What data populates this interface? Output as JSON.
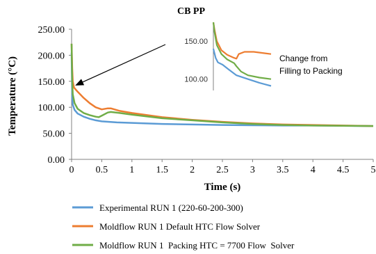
{
  "chart_data": [
    {
      "type": "line",
      "title": "CB PP",
      "xlabel": "Time (s)",
      "ylabel": "Temperature (°C)",
      "xlim": [
        0,
        5
      ],
      "ylim": [
        0,
        250
      ],
      "x_ticks": [
        "0",
        "0.5",
        "1",
        "1.5",
        "2",
        "2.5",
        "3",
        "3.5",
        "4",
        "4.5",
        "5"
      ],
      "y_ticks": [
        "0.00",
        "50.00",
        "100.00",
        "150.00",
        "200.00",
        "250.00"
      ],
      "grid": false,
      "legend_position": "bottom",
      "series": [
        {
          "name": "Experimental RUN 1 (220-60-200-300)",
          "color": "#5b9bd5",
          "points": [
            [
              0,
              205
            ],
            [
              0.01,
              120
            ],
            [
              0.02,
              105
            ],
            [
              0.05,
              95
            ],
            [
              0.1,
              88
            ],
            [
              0.2,
              82
            ],
            [
              0.3,
              78
            ],
            [
              0.4,
              75
            ],
            [
              0.5,
              73
            ],
            [
              0.75,
              71
            ],
            [
              1.0,
              70
            ],
            [
              1.5,
              68
            ],
            [
              2.0,
              67
            ],
            [
              2.5,
              66
            ],
            [
              3.0,
              65.5
            ],
            [
              3.5,
              65
            ],
            [
              4.0,
              65
            ],
            [
              4.5,
              64.5
            ],
            [
              5.0,
              64
            ]
          ]
        },
        {
          "name": "Moldflow RUN 1 Default HTC Flow Solver",
          "color": "#ed7d31",
          "points": [
            [
              0,
              222
            ],
            [
              0.01,
              175
            ],
            [
              0.02,
              150
            ],
            [
              0.04,
              138
            ],
            [
              0.1,
              130
            ],
            [
              0.2,
              118
            ],
            [
              0.3,
              108
            ],
            [
              0.4,
              100
            ],
            [
              0.5,
              96
            ],
            [
              0.6,
              98
            ],
            [
              0.65,
              98
            ],
            [
              0.8,
              93
            ],
            [
              1.0,
              89
            ],
            [
              1.25,
              85
            ],
            [
              1.5,
              81
            ],
            [
              2.0,
              76
            ],
            [
              2.5,
              72
            ],
            [
              3.0,
              69
            ],
            [
              3.5,
              67
            ],
            [
              4.0,
              66
            ],
            [
              4.5,
              65
            ],
            [
              5.0,
              64
            ]
          ]
        },
        {
          "name": "Moldflow RUN 1  Packing HTC = 7700 Flow  Solver",
          "color": "#70ad47",
          "points": [
            [
              0,
              222
            ],
            [
              0.01,
              150
            ],
            [
              0.02,
              125
            ],
            [
              0.05,
              108
            ],
            [
              0.1,
              97
            ],
            [
              0.2,
              89
            ],
            [
              0.3,
              85
            ],
            [
              0.4,
              82
            ],
            [
              0.45,
              81
            ],
            [
              0.5,
              84
            ],
            [
              0.6,
              90
            ],
            [
              0.65,
              91
            ],
            [
              0.8,
              89
            ],
            [
              1.0,
              86
            ],
            [
              1.5,
              79
            ],
            [
              2.0,
              75
            ],
            [
              2.5,
              71
            ],
            [
              3.0,
              68
            ],
            [
              3.5,
              66
            ],
            [
              4.0,
              65
            ],
            [
              4.5,
              64.5
            ],
            [
              5.0,
              64
            ]
          ]
        }
      ],
      "annotation": "Change from\nFilling to Packing"
    },
    {
      "type": "line",
      "role": "inset",
      "y_ticks": [
        "100.00",
        "150.00"
      ],
      "ylim": [
        85,
        175
      ],
      "xlim": [
        0,
        0.5
      ],
      "series": [
        {
          "name": "Experimental RUN 1 (220-60-200-300)",
          "color": "#5b9bd5",
          "points": [
            [
              0.0,
              140
            ],
            [
              0.02,
              128
            ],
            [
              0.04,
              122
            ],
            [
              0.08,
              119
            ],
            [
              0.13,
              113
            ],
            [
              0.2,
              105
            ],
            [
              0.3,
              100
            ],
            [
              0.4,
              95
            ],
            [
              0.5,
              91
            ]
          ]
        },
        {
          "name": "Moldflow RUN 1 Default HTC Flow Solver",
          "color": "#ed7d31",
          "points": [
            [
              0.0,
              178
            ],
            [
              0.01,
              165
            ],
            [
              0.03,
              150
            ],
            [
              0.07,
              138
            ],
            [
              0.12,
              132
            ],
            [
              0.18,
              128
            ],
            [
              0.2,
              127
            ],
            [
              0.22,
              133
            ],
            [
              0.27,
              136
            ],
            [
              0.35,
              136
            ],
            [
              0.45,
              134
            ],
            [
              0.5,
              133
            ]
          ]
        },
        {
          "name": "Moldflow RUN 1  Packing HTC = 7700 Flow  Solver",
          "color": "#70ad47",
          "points": [
            [
              0.0,
              178
            ],
            [
              0.01,
              162
            ],
            [
              0.03,
              145
            ],
            [
              0.07,
              133
            ],
            [
              0.12,
              126
            ],
            [
              0.18,
              121
            ],
            [
              0.2,
              117
            ],
            [
              0.24,
              110
            ],
            [
              0.3,
              105
            ],
            [
              0.4,
              102
            ],
            [
              0.5,
              100
            ]
          ]
        }
      ]
    }
  ],
  "colors": {
    "axis": "#808080",
    "text": "#000000",
    "annotation_arrow": "#000000"
  }
}
